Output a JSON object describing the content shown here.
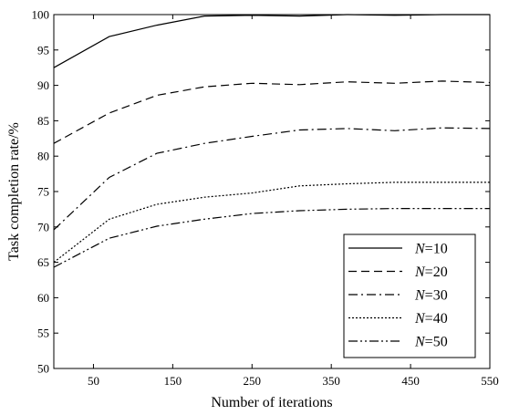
{
  "chart_data": {
    "type": "line",
    "xlabel": "Number of iterations",
    "ylabel": "Task completion rate/%",
    "xlim": [
      0,
      550
    ],
    "ylim": [
      50,
      100
    ],
    "xticks": [
      50,
      150,
      250,
      350,
      450,
      550
    ],
    "yticks": [
      50,
      55,
      60,
      65,
      70,
      75,
      80,
      85,
      90,
      95,
      100
    ],
    "grid": false,
    "legend_position": "bottom-right",
    "x": [
      0,
      70,
      130,
      190,
      250,
      310,
      370,
      430,
      490,
      550
    ],
    "series": [
      {
        "name_var": "N",
        "name_rest": "=10",
        "dash": "solid",
        "values": [
          92.5,
          96.9,
          98.5,
          99.8,
          99.9,
          99.8,
          100,
          99.9,
          100,
          100
        ]
      },
      {
        "name_var": "N",
        "name_rest": "=20",
        "dash": "dashed",
        "values": [
          81.8,
          86.1,
          88.6,
          89.8,
          90.3,
          90.1,
          90.5,
          90.3,
          90.6,
          90.4
        ]
      },
      {
        "name_var": "N",
        "name_rest": "=30",
        "dash": "dash-dot",
        "values": [
          69.6,
          77.0,
          80.4,
          81.8,
          82.8,
          83.7,
          83.9,
          83.6,
          84.0,
          83.9
        ]
      },
      {
        "name_var": "N",
        "name_rest": "=40",
        "dash": "dotted",
        "values": [
          65.0,
          71.1,
          73.2,
          74.2,
          74.8,
          75.8,
          76.1,
          76.3,
          76.3,
          76.3
        ]
      },
      {
        "name_var": "N",
        "name_rest": "=50",
        "dash": "dash-dot-dot",
        "values": [
          64.3,
          68.4,
          70.1,
          71.1,
          71.9,
          72.3,
          72.5,
          72.6,
          72.6,
          72.6
        ]
      }
    ]
  }
}
